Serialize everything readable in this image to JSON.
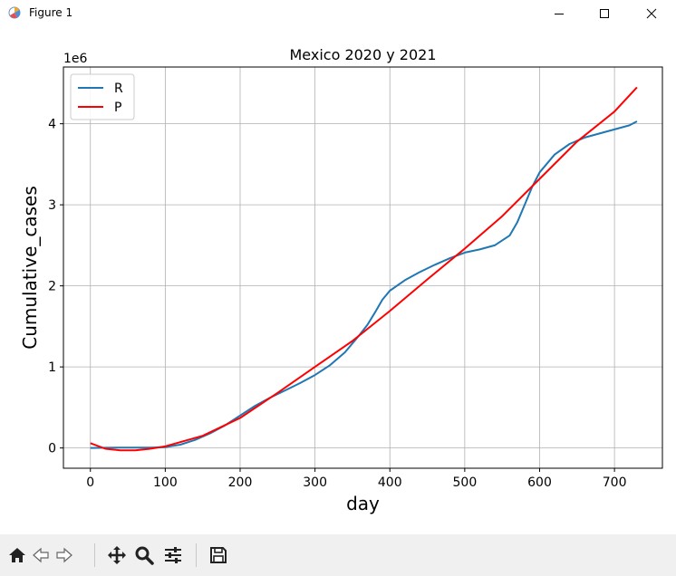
{
  "window": {
    "title": "Figure 1",
    "app_icon": "matplotlib-figure-icon",
    "controls": [
      "minimize-icon",
      "maximize-icon",
      "close-icon"
    ]
  },
  "toolbar": {
    "buttons": [
      "home-icon",
      "back-arrow-icon",
      "forward-arrow-icon",
      "pan-icon",
      "zoom-icon",
      "configure-subplots-icon",
      "save-icon"
    ]
  },
  "chart_data": {
    "type": "line",
    "title": "Mexico 2020 y 2021",
    "xlabel": "day",
    "ylabel": "Cumulative_cases",
    "offset_text": "1e6",
    "xlim": [
      -36,
      764
    ],
    "ylim": [
      -0.25,
      4.7
    ],
    "xticks": [
      0,
      100,
      200,
      300,
      400,
      500,
      600,
      700
    ],
    "yticks": [
      0,
      1,
      2,
      3,
      4
    ],
    "grid": true,
    "legend_position": "upper-left",
    "series": [
      {
        "name": "R",
        "color": "#1f77b4",
        "x": [
          0,
          20,
          40,
          60,
          80,
          100,
          120,
          140,
          160,
          180,
          200,
          220,
          240,
          260,
          280,
          300,
          320,
          340,
          360,
          370,
          380,
          390,
          400,
          420,
          440,
          460,
          480,
          500,
          520,
          540,
          560,
          570,
          580,
          590,
          600,
          620,
          640,
          660,
          680,
          700,
          720,
          730
        ],
        "y": [
          0.0,
          0.002,
          0.005,
          0.005,
          0.005,
          0.01,
          0.04,
          0.1,
          0.18,
          0.28,
          0.4,
          0.52,
          0.62,
          0.71,
          0.8,
          0.9,
          1.02,
          1.18,
          1.4,
          1.52,
          1.67,
          1.83,
          1.94,
          2.07,
          2.17,
          2.26,
          2.34,
          2.41,
          2.45,
          2.5,
          2.62,
          2.78,
          3.0,
          3.22,
          3.4,
          3.62,
          3.75,
          3.83,
          3.88,
          3.93,
          3.98,
          4.03
        ]
      },
      {
        "name": "P",
        "color": "#ff0000",
        "x": [
          0,
          20,
          40,
          60,
          80,
          100,
          150,
          200,
          250,
          300,
          350,
          400,
          450,
          500,
          550,
          600,
          650,
          700,
          730
        ],
        "y": [
          0.06,
          -0.01,
          -0.03,
          -0.03,
          -0.01,
          0.02,
          0.15,
          0.37,
          0.68,
          1.0,
          1.32,
          1.69,
          2.08,
          2.46,
          2.86,
          3.32,
          3.78,
          4.15,
          4.45
        ]
      }
    ]
  }
}
